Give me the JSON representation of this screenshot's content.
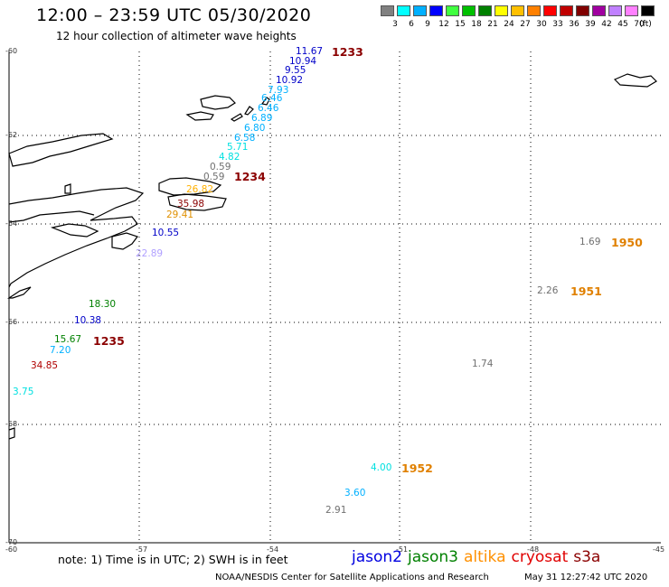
{
  "header": {
    "title": "12:00 – 23:59 UTC 05/30/2020",
    "subtitle": "12 hour collection of altimeter wave heights"
  },
  "scale": {
    "colors": [
      "#808080",
      "#00ffff",
      "#00b0ff",
      "#0000ff",
      "#40ff40",
      "#00c000",
      "#008000",
      "#ffff00",
      "#ffc000",
      "#ff8000",
      "#ff0000",
      "#c00000",
      "#800000",
      "#a000a0",
      "#c080ff",
      "#ff80ff",
      "#000000"
    ],
    "labels": [
      "3",
      "6",
      "9",
      "12",
      "15",
      "18",
      "21",
      "24",
      "27",
      "30",
      "33",
      "36",
      "39",
      "42",
      "45",
      "70",
      "(ft)"
    ]
  },
  "axes": {
    "lon_ticks": [
      "-60",
      "-57",
      "-54",
      "-51",
      "-48",
      "-45"
    ],
    "lat_ticks": [
      "-60",
      "-62",
      "-64",
      "-66",
      "-68",
      "-70"
    ]
  },
  "observations": [
    {
      "value": "11.67",
      "color": "#0000c8"
    },
    {
      "value": "10.94",
      "color": "#0000c8"
    },
    {
      "value": "9.55",
      "color": "#0000c8"
    },
    {
      "value": "10.92",
      "color": "#0000c8"
    },
    {
      "value": "7.93",
      "color": "#00b0ff"
    },
    {
      "value": "6.46",
      "color": "#00b0ff"
    },
    {
      "value": "6.46",
      "color": "#00b0ff"
    },
    {
      "value": "6.89",
      "color": "#00b0ff"
    },
    {
      "value": "6.80",
      "color": "#00b0ff"
    },
    {
      "value": "6.58",
      "color": "#00b0ff"
    },
    {
      "value": "5.71",
      "color": "#00e0e0"
    },
    {
      "value": "4.82",
      "color": "#00e0e0"
    },
    {
      "value": "0.59",
      "color": "#707070"
    },
    {
      "value": "0.59",
      "color": "#707070"
    },
    {
      "value": "26.82",
      "color": "#ffb000"
    },
    {
      "value": "35.98",
      "color": "#8b0000"
    },
    {
      "value": "29.41",
      "color": "#e09000"
    },
    {
      "value": "10.55",
      "color": "#0000c8"
    },
    {
      "value": "22.89",
      "color": "#b0a0ff"
    },
    {
      "value": "18.30",
      "color": "#008000"
    },
    {
      "value": "10.38",
      "color": "#0000c8"
    },
    {
      "value": "15.67",
      "color": "#008000"
    },
    {
      "value": "7.20",
      "color": "#00b0ff"
    },
    {
      "value": "34.85",
      "color": "#b00000"
    },
    {
      "value": "3.75",
      "color": "#00e0e0"
    },
    {
      "value": "1.69",
      "color": "#707070"
    },
    {
      "value": "2.26",
      "color": "#707070"
    },
    {
      "value": "1.74",
      "color": "#707070"
    },
    {
      "value": "4.00",
      "color": "#00e0e0"
    },
    {
      "value": "3.60",
      "color": "#00b0ff"
    },
    {
      "value": "2.91",
      "color": "#707070"
    }
  ],
  "passes": [
    {
      "time": "1233",
      "color": "#8b0000"
    },
    {
      "time": "1234",
      "color": "#8b0000"
    },
    {
      "time": "1235",
      "color": "#8b0000"
    },
    {
      "time": "1950",
      "color": "#e08000"
    },
    {
      "time": "1951",
      "color": "#e08000"
    },
    {
      "time": "1952",
      "color": "#e08000"
    }
  ],
  "footer": {
    "note": "note: 1) Time is in UTC; 2) SWH is in feet",
    "satellites": [
      {
        "name": "jason2",
        "color": "#0000e0"
      },
      {
        "name": "jason3",
        "color": "#008000"
      },
      {
        "name": "altika",
        "color": "#ff9000"
      },
      {
        "name": "cryosat",
        "color": "#e00000"
      },
      {
        "name": "s3a",
        "color": "#8b0000"
      }
    ],
    "credit": "NOAA/NESDIS Center for Satellite Applications and Research",
    "timestamp": "May 31 12:27:42 UTC 2020"
  }
}
